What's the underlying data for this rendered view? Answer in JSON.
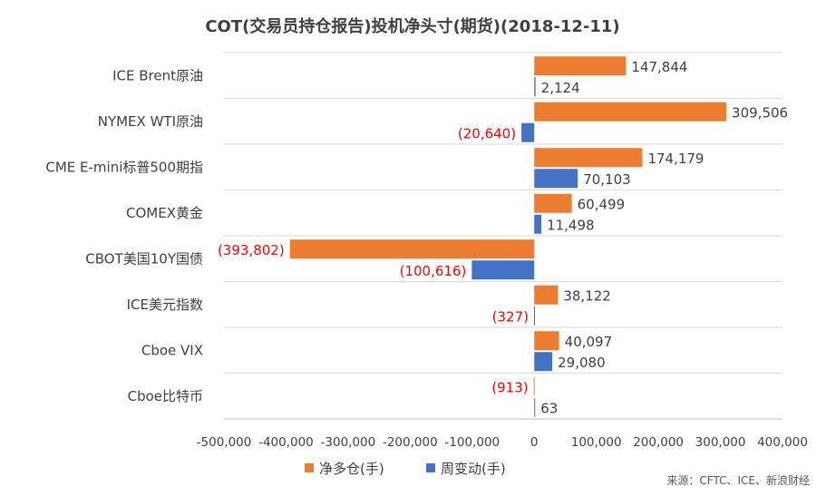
{
  "chart_data": {
    "type": "bar",
    "orientation": "horizontal",
    "title": "COT(交易员持仓报告)投机净头寸(期货)(2018-12-11)",
    "categories": [
      "ICE Brent原油",
      "NYMEX WTI原油",
      "CME E-mini标普500期指",
      "COMEX黄金",
      "CBOT美国10Y国债",
      "ICE美元指数",
      "Cboe VIX",
      "Cboe比特币"
    ],
    "series": [
      {
        "name": "净多仓(手)",
        "color": "#ED7D31",
        "values": [
          147844,
          309506,
          174179,
          60499,
          -393802,
          38122,
          40097,
          -913
        ],
        "labels": [
          "147,844",
          "309,506",
          "174,179",
          "60,499",
          "(393,802)",
          "38,122",
          "40,097",
          "(913)"
        ]
      },
      {
        "name": "周变动(手)",
        "color": "#4472C4",
        "values": [
          2124,
          -20640,
          70103,
          11498,
          -100616,
          -327,
          29080,
          63
        ],
        "labels": [
          "2,124",
          "(20,640)",
          "70,103",
          "11,498",
          "(100,616)",
          "(327)",
          "29,080",
          "63"
        ]
      }
    ],
    "xlim": [
      -500000,
      400000
    ],
    "xticks": [
      -500000,
      -400000,
      -300000,
      -200000,
      -100000,
      0,
      100000,
      200000,
      300000,
      400000
    ],
    "xtick_labels": [
      "-500,000",
      "-400,000",
      "-300,000",
      "-200,000",
      "-100,000",
      "0",
      "100,000",
      "200,000",
      "300,000",
      "400,000"
    ],
    "negative_label_color": "#FF0000",
    "positive_label_color": "#404040",
    "gridlines": "horizontal",
    "legend_position": "bottom"
  },
  "source": "来源：CFTC、ICE、新浪财经"
}
